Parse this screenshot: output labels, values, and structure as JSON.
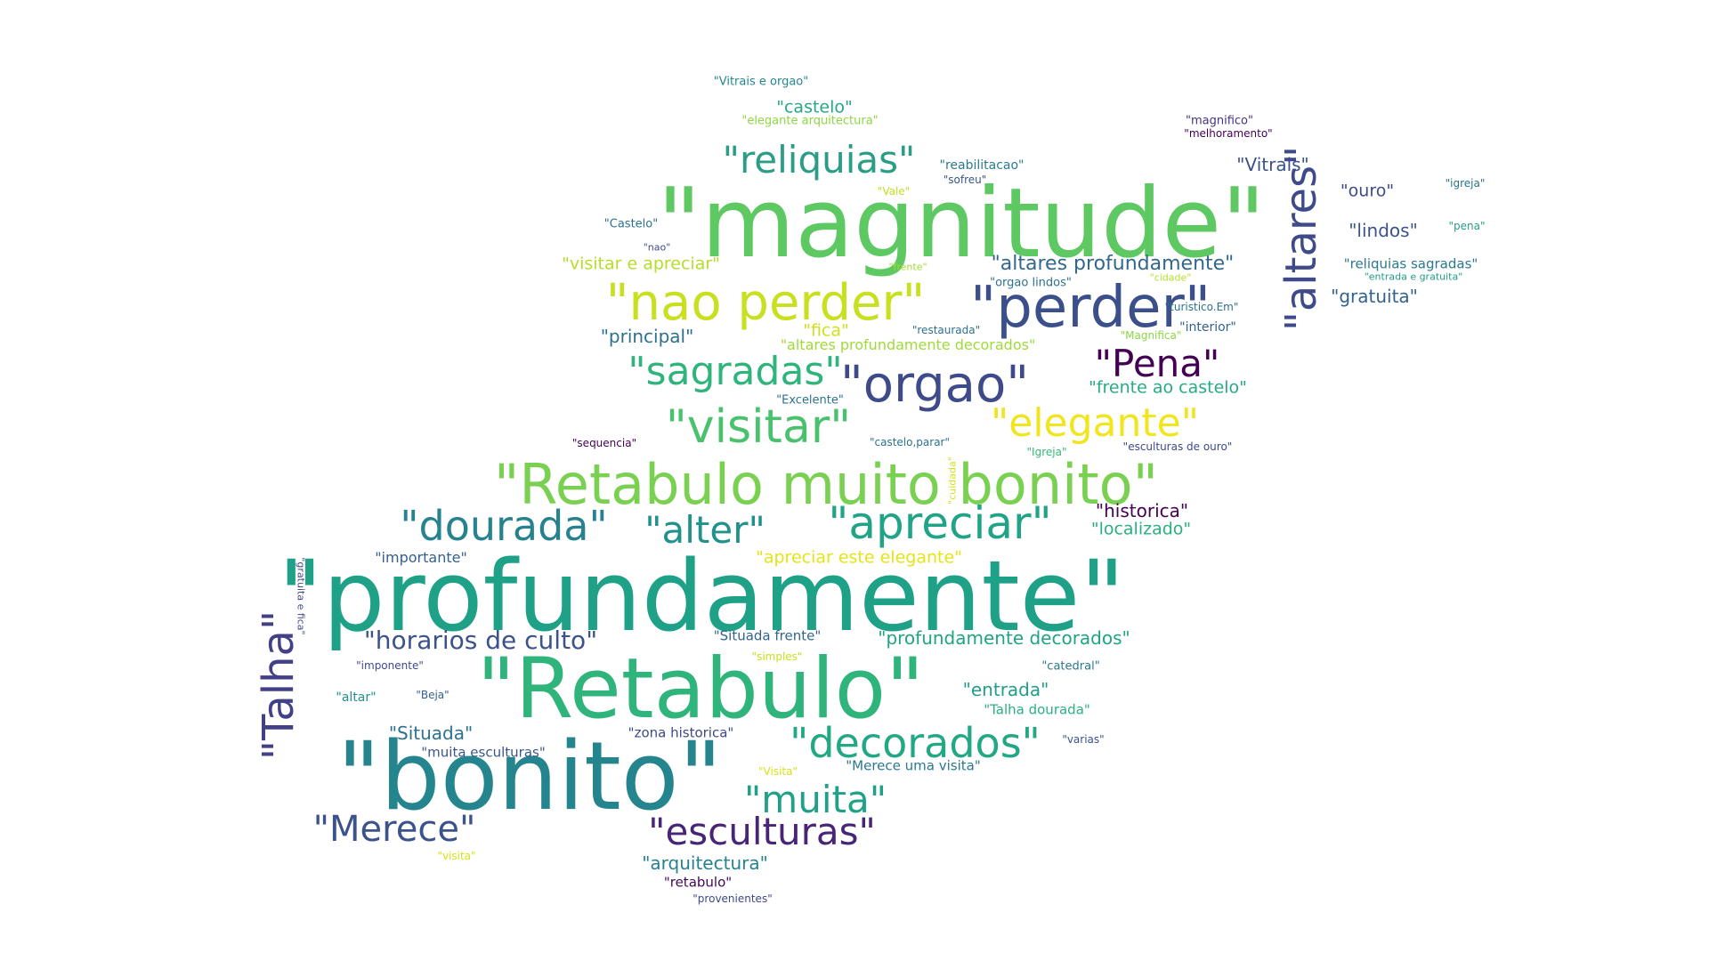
{
  "words": [
    {
      "text": "\"Vitrais e orgao\"",
      "color": "#24878e",
      "font_size": 13
    },
    {
      "text": "\"castelo\"",
      "color": "#26a883",
      "font_size": 19
    },
    {
      "text": "\"elegante arquitectura\"",
      "color": "#8ed645",
      "font_size": 13
    },
    {
      "text": "\"magnifico\"",
      "color": "#46327e",
      "font_size": 13
    },
    {
      "text": "\"melhoramento\"",
      "color": "#440154",
      "font_size": 12
    },
    {
      "text": "\"reliquias\"",
      "color": "#2a9d85",
      "font_size": 42
    },
    {
      "text": "\"reabilitacao\"",
      "color": "#2a7b8e",
      "font_size": 14
    },
    {
      "text": "\"sofreu\"",
      "color": "#39568c",
      "font_size": 12
    },
    {
      "text": "\"Vitrais\"",
      "color": "#3b528b",
      "font_size": 20
    },
    {
      "text": "\"igreja\"",
      "color": "#2c728e",
      "font_size": 12
    },
    {
      "text": "\"Vale\"",
      "color": "#c2df23",
      "font_size": 12
    },
    {
      "text": "\"magnitude\"",
      "color": "#5ec962",
      "font_size": 108
    },
    {
      "text": "\"ouro\"",
      "color": "#3e4a89",
      "font_size": 19
    },
    {
      "text": "\"Castelo\"",
      "color": "#2d708e",
      "font_size": 13
    },
    {
      "text": "\"lindos\"",
      "color": "#3b528b",
      "font_size": 20
    },
    {
      "text": "\"pena\"",
      "color": "#2a9d85",
      "font_size": 12
    },
    {
      "text": "\"nao\"",
      "color": "#3e4989",
      "font_size": 11
    },
    {
      "text": "\"visitar e apreciar\"",
      "color": "#b5de2b",
      "font_size": 19
    },
    {
      "text": "\"frente\"",
      "color": "#a2da37",
      "font_size": 11
    },
    {
      "text": "\"altares profundamente\"",
      "color": "#31688e",
      "font_size": 22
    },
    {
      "text": "\"altares\"",
      "color": "#3e4a89",
      "font_size": 48,
      "rotated": true
    },
    {
      "text": "\"reliquias sagradas\"",
      "color": "#2a788e",
      "font_size": 15
    },
    {
      "text": "\"entrada e gratuita\"",
      "color": "#1f9e89",
      "font_size": 11
    },
    {
      "text": "\"orgao lindos\"",
      "color": "#2d708e",
      "font_size": 13
    },
    {
      "text": "\"cidade\"",
      "color": "#b5de2b",
      "font_size": 11
    },
    {
      "text": "\"nao perder\"",
      "color": "#c8e020",
      "font_size": 56
    },
    {
      "text": "\"perder\"",
      "color": "#3b4f8a",
      "font_size": 64
    },
    {
      "text": "\"gratuita\"",
      "color": "#33638d",
      "font_size": 20
    },
    {
      "text": "\"turistico.Em\"",
      "color": "#2c728e",
      "font_size": 12
    },
    {
      "text": "\"principal\"",
      "color": "#2d718e",
      "font_size": 20
    },
    {
      "text": "\"fica\"",
      "color": "#d0e11c",
      "font_size": 19
    },
    {
      "text": "\"restaurada\"",
      "color": "#2d708e",
      "font_size": 12
    },
    {
      "text": "\"Magnifica\"",
      "color": "#8ed645",
      "font_size": 12
    },
    {
      "text": "\"interior\"",
      "color": "#33638d",
      "font_size": 14
    },
    {
      "text": "\"altares profundamente decorados\"",
      "color": "#a0da39",
      "font_size": 16
    },
    {
      "text": "\"Pena\"",
      "color": "#440154",
      "font_size": 42
    },
    {
      "text": "\"sagradas\"",
      "color": "#2fb47c",
      "font_size": 44
    },
    {
      "text": "\"orgao\"",
      "color": "#3e4a89",
      "font_size": 56
    },
    {
      "text": "\"frente ao castelo\"",
      "color": "#25ac82",
      "font_size": 19
    },
    {
      "text": "\"Excelente\"",
      "color": "#2c728e",
      "font_size": 13
    },
    {
      "text": "\"visitar\"",
      "color": "#4ac16d",
      "font_size": 52
    },
    {
      "text": "\"elegante\"",
      "color": "#f1e51d",
      "font_size": 44
    },
    {
      "text": "\"sequencia\"",
      "color": "#440154",
      "font_size": 12
    },
    {
      "text": "\"castelo,parar\"",
      "color": "#2c728e",
      "font_size": 12
    },
    {
      "text": "\"Igreja\"",
      "color": "#35b779",
      "font_size": 12
    },
    {
      "text": "\"esculturas de ouro\"",
      "color": "#3e4989",
      "font_size": 12
    },
    {
      "text": "\"Retabulo muito bonito\"",
      "color": "#7ad151",
      "font_size": 62
    },
    {
      "text": "\"cuidada\"",
      "color": "#d0e11c",
      "font_size": 11,
      "rotated": true
    },
    {
      "text": "\"dourada\"",
      "color": "#26828e",
      "font_size": 46
    },
    {
      "text": "\"alter\"",
      "color": "#21918c",
      "font_size": 42
    },
    {
      "text": "\"apreciar\"",
      "color": "#20a386",
      "font_size": 50
    },
    {
      "text": "\"historica\"",
      "color": "#440154",
      "font_size": 20
    },
    {
      "text": "\"localizado\"",
      "color": "#2ab07f",
      "font_size": 19
    },
    {
      "text": "\"importante\"",
      "color": "#35608d",
      "font_size": 16
    },
    {
      "text": "\"apreciar este elegante\"",
      "color": "#e5e419",
      "font_size": 19
    },
    {
      "text": "\"gratuita e fica\"",
      "color": "#3e4a89",
      "font_size": 11,
      "rotated_down": true
    },
    {
      "text": "\"profundamente\"",
      "color": "#1fa188",
      "font_size": 110
    },
    {
      "text": "\"Talha\"",
      "color": "#424086",
      "font_size": 48,
      "rotated": true
    },
    {
      "text": "\"horarios de culto\"",
      "color": "#3b528b",
      "font_size": 28
    },
    {
      "text": "\"Situada frente\"",
      "color": "#33638d",
      "font_size": 15
    },
    {
      "text": "\"profundamente decorados\"",
      "color": "#20a486",
      "font_size": 20
    },
    {
      "text": "\"simples\"",
      "color": "#c8e020",
      "font_size": 12
    },
    {
      "text": "\"imponente\"",
      "color": "#3e4a89",
      "font_size": 12
    },
    {
      "text": "\"Retabulo\"",
      "color": "#2fb47c",
      "font_size": 94
    },
    {
      "text": "\"catedral\"",
      "color": "#2a788e",
      "font_size": 13
    },
    {
      "text": "\"altar\"",
      "color": "#21918c",
      "font_size": 14
    },
    {
      "text": "\"Beja\"",
      "color": "#35608d",
      "font_size": 12
    },
    {
      "text": "\"entrada\"",
      "color": "#1f9e89",
      "font_size": 20
    },
    {
      "text": "\"Talha dourada\"",
      "color": "#2ab07f",
      "font_size": 15
    },
    {
      "text": "\"Situada\"",
      "color": "#2c728e",
      "font_size": 20
    },
    {
      "text": "\"zona historica\"",
      "color": "#3e4a89",
      "font_size": 15
    },
    {
      "text": "\"decorados\"",
      "color": "#22a884",
      "font_size": 46
    },
    {
      "text": "\"varias\"",
      "color": "#3b528b",
      "font_size": 12
    },
    {
      "text": "\"bonito\"",
      "color": "#25858e",
      "font_size": 106
    },
    {
      "text": "\"muita esculturas\"",
      "color": "#39568c",
      "font_size": 15
    },
    {
      "text": "\"Visita\"",
      "color": "#d8e219",
      "font_size": 12
    },
    {
      "text": "\"Merece uma visita\"",
      "color": "#2a788e",
      "font_size": 15
    },
    {
      "text": "\"muita\"",
      "color": "#1fa188",
      "font_size": 42
    },
    {
      "text": "\"Merece\"",
      "color": "#3b528b",
      "font_size": 40
    },
    {
      "text": "\"esculturas\"",
      "color": "#482576",
      "font_size": 42
    },
    {
      "text": "\"arquitectura\"",
      "color": "#26828e",
      "font_size": 20
    },
    {
      "text": "\"visita\"",
      "color": "#d8e219",
      "font_size": 12
    },
    {
      "text": "\"retabulo\"",
      "color": "#450559",
      "font_size": 15
    },
    {
      "text": "\"provenientes\"",
      "color": "#3e4989",
      "font_size": 12
    }
  ]
}
